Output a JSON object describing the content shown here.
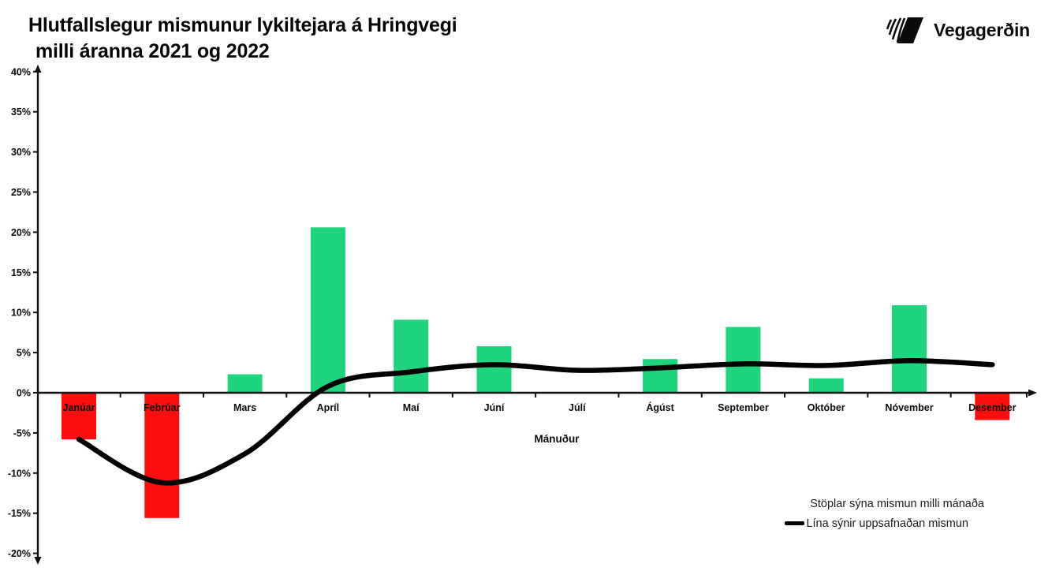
{
  "header": {
    "title_line1": "Hlutfallslegur mismunur lykiltejara á Hringvegi",
    "title_line2": "milli áranna 2021 og 2022",
    "logo_text": "Vegagerðin"
  },
  "chart_data": {
    "type": "bar",
    "title": "Hlutfallslegur mismunur lykiltejara á Hringvegi milli áranna 2021 og 2022",
    "xlabel": "Mánuður",
    "ylabel": "",
    "ylim": [
      -20,
      40
    ],
    "ytick_step": 5,
    "ytick_suffix": "%",
    "grid": false,
    "legend_position": "bottom-right",
    "categories": [
      "Janúar",
      "Febrúar",
      "Mars",
      "Apríl",
      "Maí",
      "Júní",
      "Júlí",
      "Ágúst",
      "September",
      "Október",
      "Nóvember",
      "Desember"
    ],
    "series": [
      {
        "name": "Stöplar sýna mismun milli mánaða",
        "type": "bar",
        "values": [
          -5.8,
          -15.6,
          2.3,
          20.6,
          9.1,
          5.8,
          0.0,
          4.2,
          8.2,
          1.8,
          10.9,
          -3.4
        ],
        "color_positive": "#1ed47d",
        "color_negative": "#fa0f0c"
      },
      {
        "name": "Lína sýnir uppsafnaðan mismun",
        "type": "line",
        "values": [
          -5.8,
          -11.2,
          -7.6,
          0.8,
          2.6,
          3.5,
          2.8,
          3.1,
          3.6,
          3.4,
          4.0,
          3.5
        ],
        "color": "#000000"
      }
    ],
    "legend": {
      "bars_label": "Stöplar sýna mismun milli mánaða",
      "line_label": "Lína sýnir uppsafnaðan mismun"
    }
  }
}
